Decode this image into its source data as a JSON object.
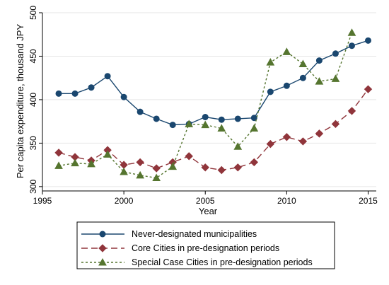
{
  "chart_data": {
    "type": "line",
    "xlabel": "Year",
    "ylabel": "Per capita expenditure, thousand JPY",
    "xlim": [
      1995,
      2015.5
    ],
    "ylim": [
      295,
      500
    ],
    "xticks": [
      1995,
      2000,
      2005,
      2010,
      2015
    ],
    "yticks": [
      300,
      350,
      400,
      450,
      500
    ],
    "grid": true,
    "legend_position": "bottom",
    "x": [
      1996,
      1997,
      1998,
      1999,
      2000,
      2001,
      2002,
      2003,
      2004,
      2005,
      2006,
      2007,
      2008,
      2009,
      2010,
      2011,
      2012,
      2013,
      2014,
      2015
    ],
    "series": [
      {
        "name": "Never-designated municipalities",
        "color": "#1a476f",
        "marker": "circle",
        "dash": "solid",
        "x": [
          1996,
          1997,
          1998,
          1999,
          2000,
          2001,
          2002,
          2003,
          2004,
          2005,
          2006,
          2007,
          2008,
          2009,
          2010,
          2011,
          2012,
          2013,
          2014,
          2015
        ],
        "values": [
          407,
          407,
          414,
          427,
          403,
          386,
          378,
          371,
          372,
          380,
          377,
          378,
          379,
          409,
          416,
          425,
          445,
          453,
          462,
          468
        ]
      },
      {
        "name": "Core Cities in pre-designation periods",
        "color": "#90353b",
        "marker": "diamond",
        "dash": "long",
        "x": [
          1996,
          1997,
          1998,
          1999,
          2000,
          2001,
          2002,
          2003,
          2004,
          2005,
          2006,
          2007,
          2008,
          2009,
          2010,
          2011,
          2012,
          2013,
          2014,
          2015
        ],
        "values": [
          339,
          334,
          330,
          342,
          325,
          328,
          321,
          328,
          335,
          322,
          319,
          322,
          328,
          349,
          357,
          352,
          361,
          372,
          387,
          412
        ]
      },
      {
        "name": "Special Case Cities in pre-designation periods",
        "color": "#55752f",
        "marker": "triangle",
        "dash": "short",
        "x": [
          1996,
          1997,
          1998,
          1999,
          2000,
          2001,
          2002,
          2003,
          2004,
          2005,
          2006,
          2007,
          2008,
          2009,
          2010,
          2011,
          2012,
          2013,
          2014
        ],
        "values": [
          324,
          327,
          326,
          337,
          317,
          313,
          310,
          323,
          372,
          371,
          367,
          346,
          367,
          443,
          455,
          441,
          421,
          424,
          477
        ]
      }
    ]
  }
}
